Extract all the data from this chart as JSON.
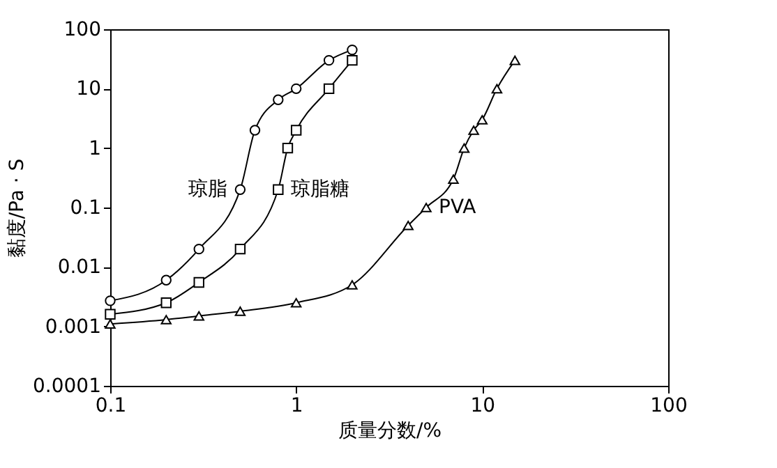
{
  "chart_data": {
    "type": "line",
    "xlabel": "质量分数/%",
    "ylabel": "黏度/Pa · S",
    "log": "xy",
    "grid": false,
    "xlim": [
      0.1,
      100
    ],
    "xticks": [
      0.1,
      1,
      10,
      100
    ],
    "ylim": [
      0.0001,
      100
    ],
    "yticks": [
      0.0001,
      0.001,
      0.01,
      0.1,
      1,
      10,
      100
    ],
    "series": [
      {
        "name": "琼脂",
        "color": "#000000",
        "marker": "circle",
        "x": [
          0.1,
          0.2,
          0.3,
          0.5,
          0.6,
          0.8,
          1.0,
          1.5,
          2.0
        ],
        "values": [
          0.0027,
          0.006,
          0.02,
          0.2,
          2,
          6.5,
          10,
          30,
          45
        ]
      },
      {
        "name": "琼脂糖",
        "color": "#000000",
        "marker": "square",
        "x": [
          0.1,
          0.2,
          0.3,
          0.5,
          0.8,
          0.9,
          1.0,
          1.5,
          2.0
        ],
        "values": [
          0.0016,
          0.0025,
          0.0055,
          0.02,
          0.2,
          1,
          2,
          10,
          30
        ]
      },
      {
        "name": "PVA",
        "color": "#000000",
        "marker": "triangle",
        "x": [
          0.1,
          0.2,
          0.3,
          0.5,
          1,
          2,
          4,
          5,
          7,
          8,
          9,
          10,
          12,
          15
        ],
        "values": [
          0.0011,
          0.0013,
          0.0015,
          0.0018,
          0.0025,
          0.005,
          0.05,
          0.1,
          0.3,
          1,
          2,
          3,
          10,
          30
        ]
      }
    ]
  }
}
